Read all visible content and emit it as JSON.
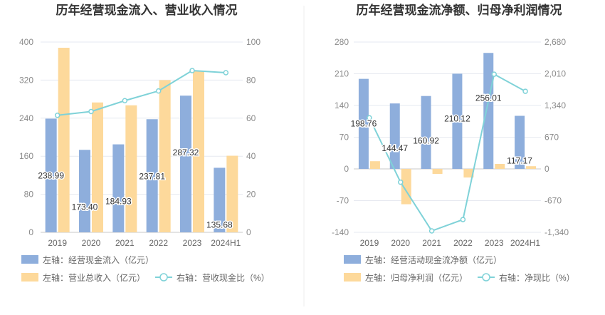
{
  "colors": {
    "bar_blue": "#8eaedc",
    "bar_orange": "#fdd99b",
    "line": "#7fd2d8",
    "grid": "#e6e9f0",
    "divider": "#eeeeee"
  },
  "chart_data": [
    {
      "type": "bar",
      "title": "历年经营现金流入、营业收入情况",
      "categories": [
        "2019",
        "2020",
        "2021",
        "2022",
        "2023",
        "2024H1"
      ],
      "left_axis": {
        "ticks": [
          "0",
          "80",
          "160",
          "240",
          "320",
          "400"
        ],
        "ylim": [
          0,
          400
        ]
      },
      "right_axis": {
        "ticks": [
          "0",
          "20",
          "40",
          "60",
          "80",
          "100"
        ],
        "ylim": [
          0,
          100
        ]
      },
      "series": [
        {
          "name": "左轴：经营现金流入（亿元）",
          "kind": "bar",
          "axis": "left",
          "color": "#8eaedc",
          "values": [
            238.99,
            173.4,
            184.93,
            237.81,
            287.32,
            135.68
          ],
          "labels": [
            "238.99",
            "173.40",
            "184.93",
            "237.81",
            "287.32",
            "135.68"
          ]
        },
        {
          "name": "左轴：营业总收入（亿元）",
          "kind": "bar",
          "axis": "left",
          "color": "#fdd99b",
          "values": [
            388,
            273,
            267,
            320,
            339,
            161
          ]
        },
        {
          "name": "右轴：营收现金比（%）",
          "kind": "line",
          "axis": "right",
          "color": "#7fd2d8",
          "values": [
            61.5,
            63.5,
            69.2,
            74.3,
            85,
            83.9
          ]
        }
      ],
      "grid": true,
      "legend_position": "bottom-left"
    },
    {
      "type": "bar",
      "title": "历年经营现金流净额、归母净利润情况",
      "categories": [
        "2019",
        "2020",
        "2021",
        "2022",
        "2023",
        "2024H1"
      ],
      "left_axis": {
        "ticks": [
          "-140",
          "-70",
          "0",
          "70",
          "140",
          "210",
          "280"
        ],
        "ylim": [
          -140,
          280
        ]
      },
      "right_axis": {
        "ticks": [
          "-1,340",
          "-670",
          "0",
          "670",
          "1,340",
          "2,010",
          "2,680"
        ],
        "ylim": [
          -1340,
          2680
        ]
      },
      "series": [
        {
          "name": "左轴：经营活动现金流净额（亿元）",
          "kind": "bar",
          "axis": "left",
          "color": "#8eaedc",
          "values": [
            198.76,
            144.47,
            160.92,
            210.12,
            256.01,
            117.17
          ],
          "labels": [
            "198.76",
            "144.47",
            "160.92",
            "210.12",
            "256.01",
            "117.17"
          ]
        },
        {
          "name": "左轴：归母净利润（亿元）",
          "kind": "bar",
          "axis": "left",
          "color": "#fdd99b",
          "values": [
            17,
            -78,
            -11,
            -19,
            11,
            6
          ]
        },
        {
          "name": "右轴：净现比（%）",
          "kind": "line",
          "axis": "right",
          "color": "#7fd2d8",
          "values": [
            1080,
            -280,
            -1310,
            -1070,
            2000,
            1640
          ]
        }
      ],
      "grid": true,
      "legend_position": "bottom-left"
    }
  ]
}
